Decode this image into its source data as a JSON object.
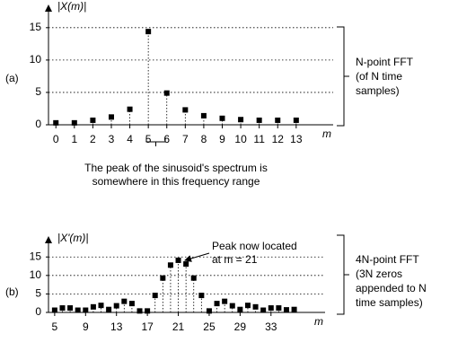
{
  "chart_data": [
    {
      "type": "stem",
      "panel_label": "(a)",
      "y_label": "|X(m)|",
      "x_label": "m",
      "x": [
        0,
        1,
        2,
        3,
        4,
        5,
        6,
        7,
        8,
        9,
        10,
        11,
        12,
        13
      ],
      "values": [
        0.3,
        0.3,
        0.7,
        1.2,
        2.4,
        14.4,
        4.9,
        2.3,
        1.4,
        1.0,
        0.8,
        0.7,
        0.7,
        0.7
      ],
      "color": "#000000",
      "xlim": [
        -0.4,
        15
      ],
      "xticks": [
        0,
        1,
        2,
        3,
        4,
        5,
        6,
        7,
        8,
        9,
        10,
        11,
        12,
        13
      ],
      "ylim": [
        0,
        16.5
      ],
      "yticks": [
        0,
        5,
        10,
        15
      ],
      "grid": true,
      "annotation": [
        "The peak of the sinusoid's spectrum is",
        "somewhere in this frequency range"
      ],
      "bracket_text": [
        "N-point FFT",
        "(of N time",
        "samples)"
      ]
    },
    {
      "type": "stem",
      "panel_label": "(b)",
      "y_label": "|X'(m)|",
      "x_label": "m",
      "x": [
        5,
        6,
        7,
        8,
        9,
        10,
        11,
        12,
        13,
        14,
        15,
        16,
        17,
        18,
        19,
        20,
        21,
        22,
        23,
        24,
        25,
        26,
        27,
        28,
        29,
        30,
        31,
        32,
        33,
        34,
        35,
        36
      ],
      "values": [
        0.6,
        1.2,
        1.2,
        0.6,
        0.6,
        1.5,
        1.9,
        0.8,
        1.8,
        3.0,
        2.4,
        0.4,
        0.4,
        4.6,
        9.3,
        12.8,
        14.1,
        13.1,
        9.3,
        4.6,
        0.4,
        2.4,
        3.0,
        1.8,
        0.8,
        1.9,
        1.5,
        0.6,
        1.2,
        1.2,
        0.7,
        0.8
      ],
      "color": "#000000",
      "xlim": [
        4.2,
        40
      ],
      "xticks": [
        5,
        9,
        13,
        17,
        21,
        25,
        29,
        33
      ],
      "ylim": [
        0,
        17
      ],
      "yticks": [
        0,
        5,
        10,
        15
      ],
      "grid": true,
      "annotation": [
        "Peak now located",
        "at m = 21"
      ],
      "bracket_text": [
        "4N-point FFT",
        "(3N zeros",
        "appended to N",
        "time samples)"
      ]
    }
  ]
}
